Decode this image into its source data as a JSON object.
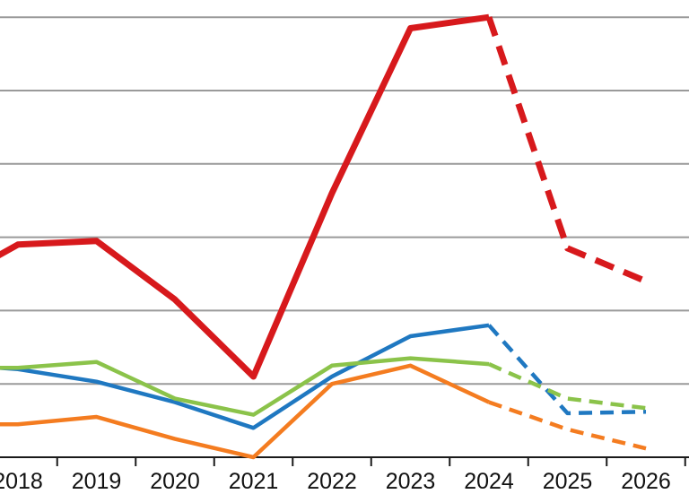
{
  "chart_data": {
    "type": "line",
    "title": "",
    "xlabel": "",
    "ylabel": "",
    "x": [
      2017.75,
      2018,
      2019,
      2020,
      2021,
      2022,
      2023,
      2024,
      2025,
      2026
    ],
    "x_tick_labels": [
      "2018",
      "2019",
      "2020",
      "2021",
      "2022",
      "2023",
      "2024",
      "2025",
      "2026"
    ],
    "ylim": [
      0,
      6.1
    ],
    "y_gridlines": [
      1,
      2,
      3,
      4,
      5,
      6
    ],
    "projection_start_x": 2024,
    "series": [
      {
        "color": "#d7191c",
        "values": [
          2.75,
          2.9,
          2.95,
          2.15,
          1.1,
          3.6,
          5.85,
          6.0,
          2.85,
          2.4
        ]
      },
      {
        "color": "#1f78c1",
        "values": [
          1.22,
          1.2,
          1.03,
          0.75,
          0.4,
          1.1,
          1.65,
          1.8,
          0.6,
          0.62
        ]
      },
      {
        "color": "#8bc34a",
        "values": [
          1.22,
          1.22,
          1.3,
          0.8,
          0.58,
          1.25,
          1.35,
          1.27,
          0.8,
          0.67
        ]
      },
      {
        "color": "#f47c20",
        "values": [
          0.45,
          0.45,
          0.55,
          0.25,
          0.0,
          1.0,
          1.25,
          0.75,
          0.38,
          0.12
        ]
      }
    ],
    "grid": true,
    "legend": "none"
  }
}
